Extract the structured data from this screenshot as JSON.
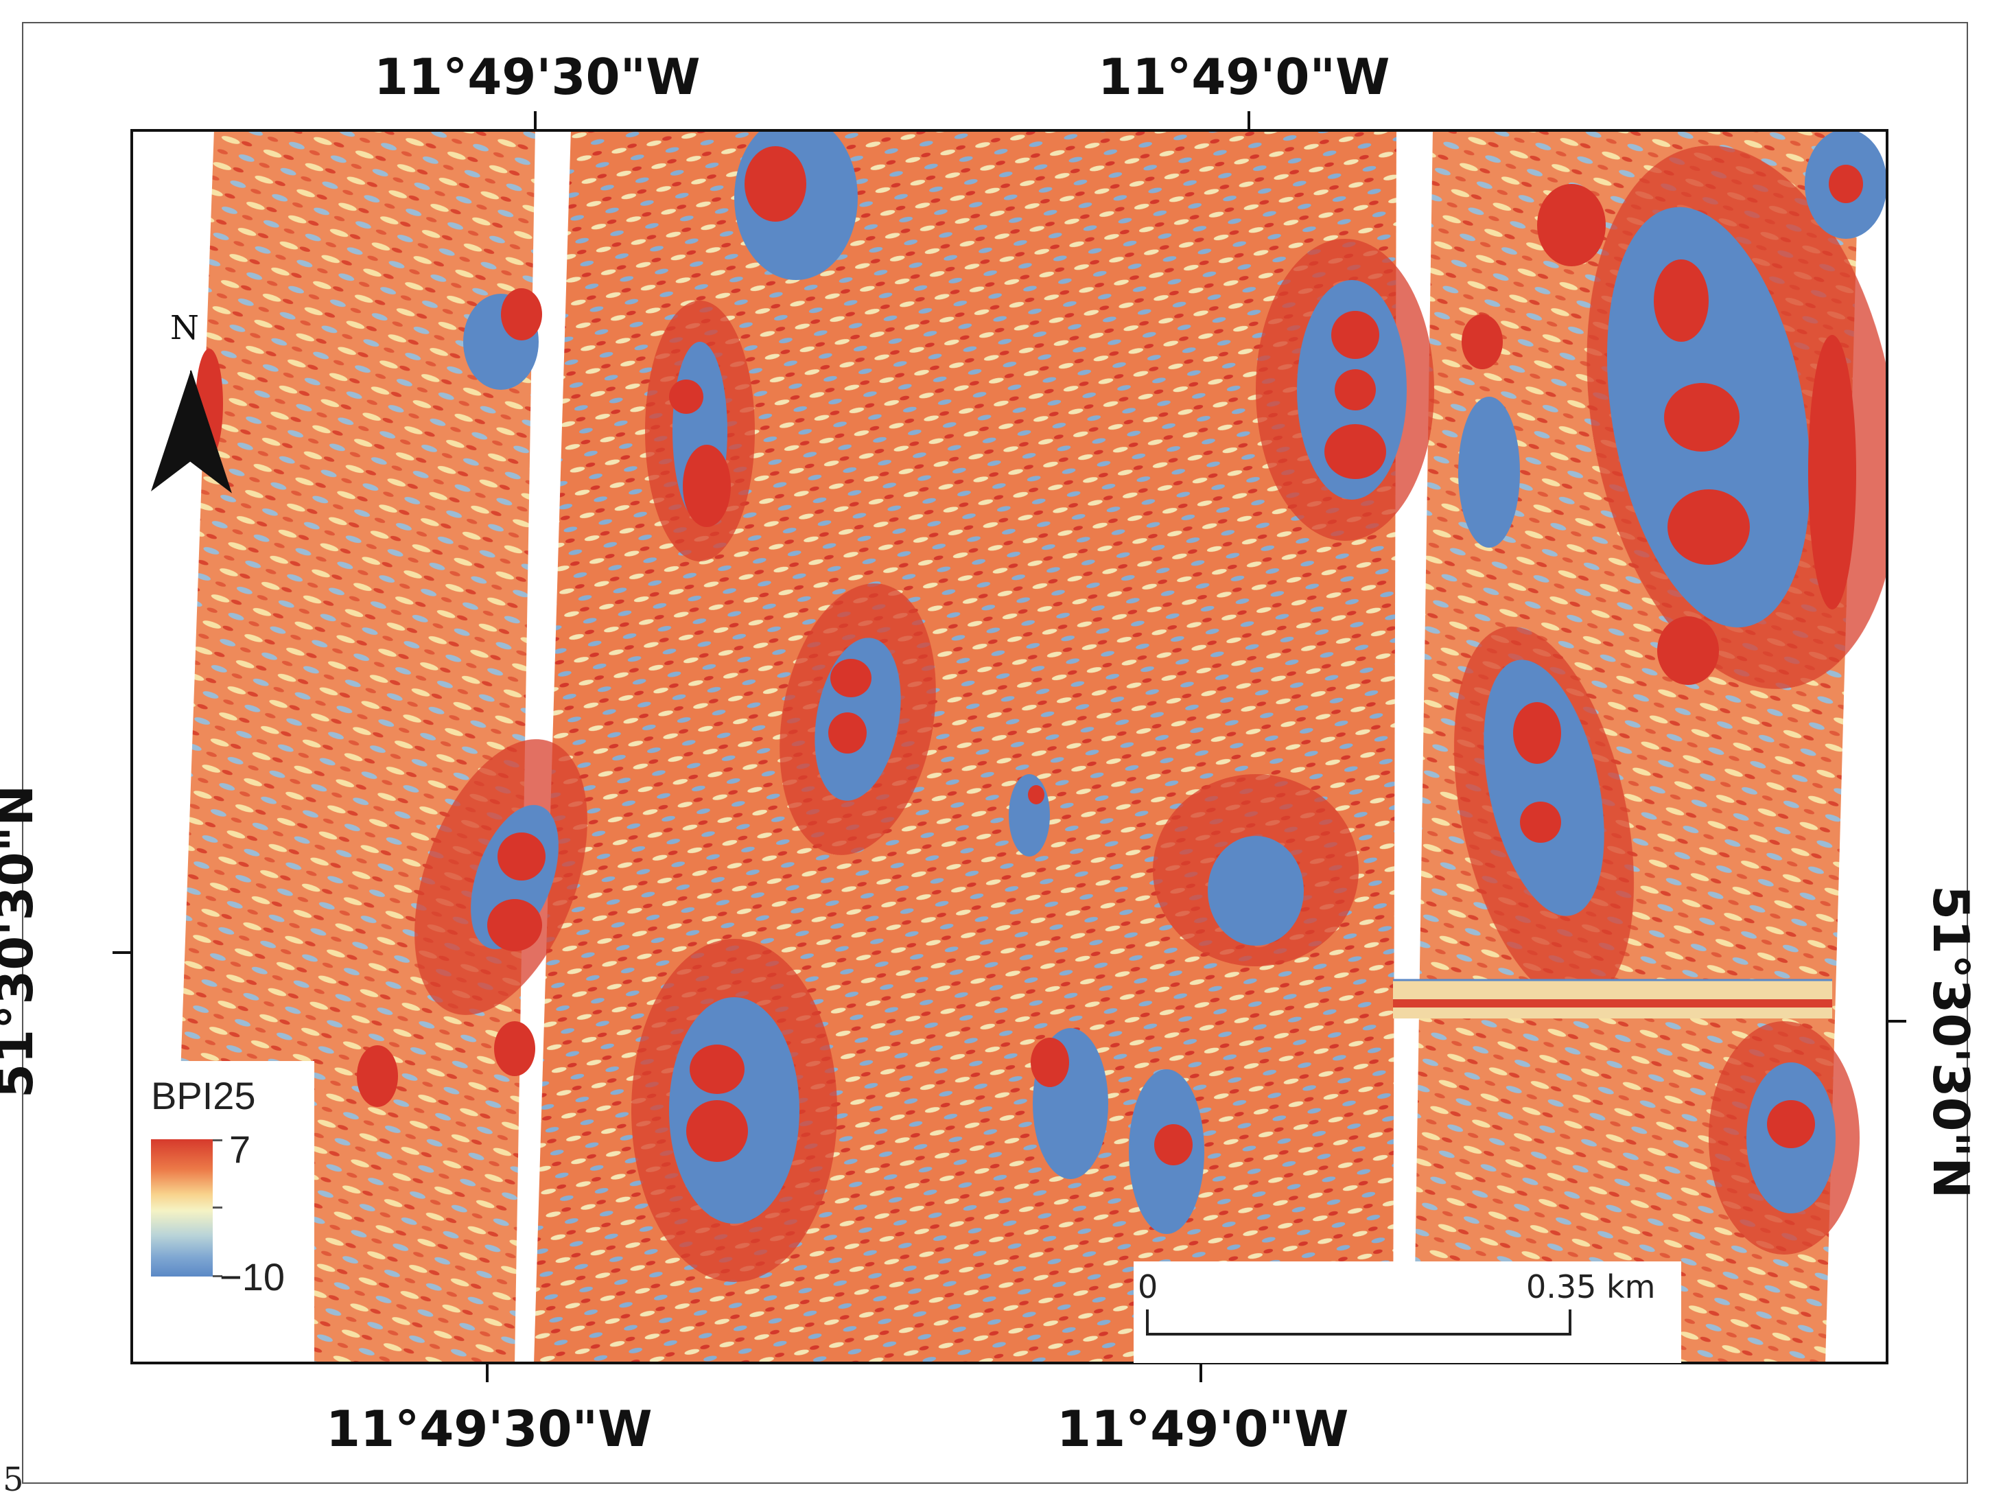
{
  "page_number": "5",
  "coordinates": {
    "top_left_lon": "11°49'30\"W",
    "top_right_lon": "11°49'0\"W",
    "bottom_left_lon": "11°49'30\"W",
    "bottom_right_lon": "11°49'0\"W",
    "left_lat": "51°30'30\"N",
    "right_lat": "51°30'30\"N"
  },
  "north_arrow": {
    "label": "N",
    "icon": "north-arrow-icon"
  },
  "legend": {
    "title": "BPI25",
    "max_label": "7",
    "min_label": "−10",
    "colors": [
      "#d63a2c",
      "#ec7a48",
      "#f8d28c",
      "#f5f3c4",
      "#b9d4d8",
      "#7fa7d2",
      "#5b89c6"
    ]
  },
  "scale_bar": {
    "start_label": "0",
    "end_label": "0.35 km"
  },
  "colors": {
    "high": "#d63a2c",
    "mid": "#f5e7b0",
    "low": "#5b89c6",
    "frame": "#111111"
  }
}
